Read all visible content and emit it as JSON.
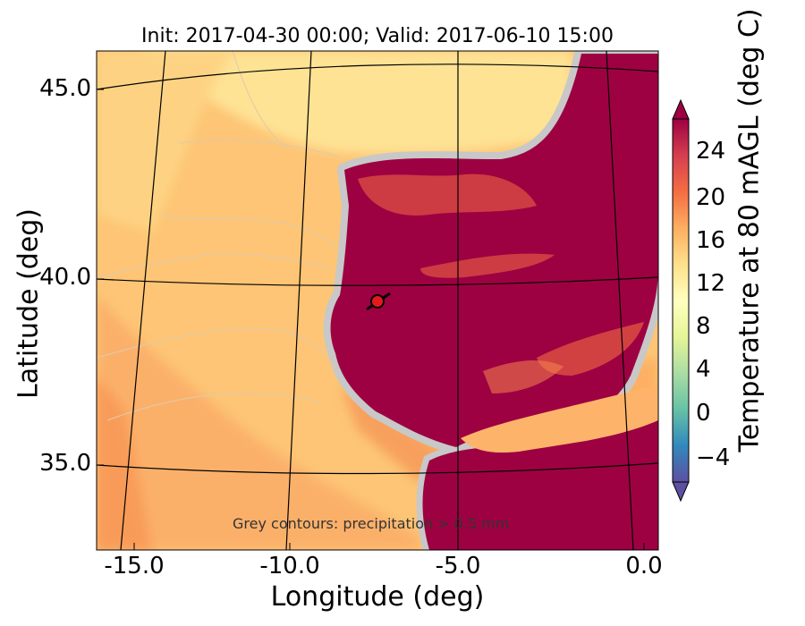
{
  "title": "Init: 2017-04-30 00:00; Valid: 2017-06-10 15:00",
  "xlabel": "Longitude (deg)",
  "ylabel": "Latitude (deg)",
  "note": "Grey contours: precipitation > 0.5 mm",
  "map": {
    "x_ticks": [
      {
        "label": "-15.0"
      },
      {
        "label": "-10.0"
      },
      {
        "label": "-5.0"
      },
      {
        "label": "0.0"
      }
    ],
    "y_ticks": [
      {
        "label": "45.0"
      },
      {
        "label": "40.0"
      },
      {
        "label": "35.0"
      }
    ],
    "marker": {
      "lon": -7.6,
      "lat": 39.4,
      "color": "#e41a1c"
    },
    "land_color": "#9e0142",
    "ocean_colors": [
      "#fee08b",
      "#fdc272",
      "#fdae61",
      "#f99d59"
    ]
  },
  "colorbar": {
    "label": "Temperature at 80 mAGL (deg C)",
    "min": -6,
    "max": 28,
    "ticks": [
      "24",
      "20",
      "16",
      "12",
      "8",
      "4",
      "0",
      "−4"
    ],
    "colormap": "Spectral_r"
  }
}
